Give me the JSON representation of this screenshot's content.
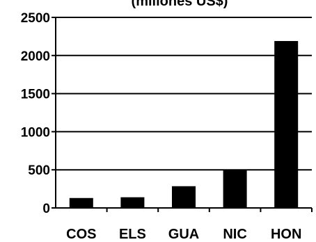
{
  "chart_data": {
    "type": "bar",
    "title": "(millones US$)",
    "categories": [
      "COS",
      "ELS",
      "GUA",
      "NIC",
      "HON"
    ],
    "values": [
      130,
      140,
      285,
      500,
      2190
    ],
    "ylim": [
      0,
      2500
    ],
    "yticks": [
      0,
      500,
      1000,
      1500,
      2000,
      2500
    ],
    "xlabel": "",
    "ylabel": "",
    "grid": true,
    "bar_color": "#000000",
    "grid_color": "#000000"
  }
}
